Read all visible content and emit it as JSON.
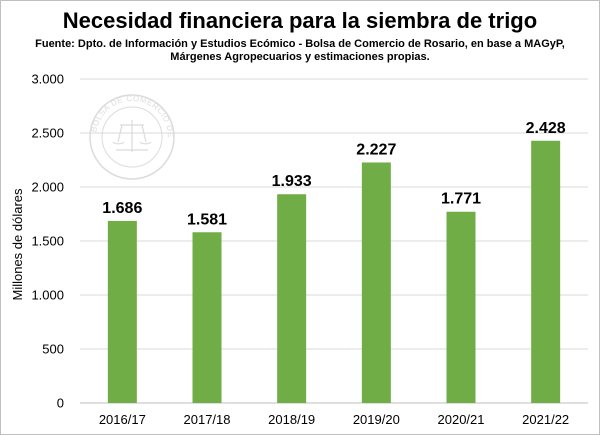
{
  "chart_data": {
    "type": "bar",
    "title": "Necesidad financiera para la siembra de trigo",
    "subtitle_lines": [
      "Fuente: Dpto. de Información y Estudios Ecómico - Bolsa de Comercio de Rosario, en base a MAGyP,",
      "Márgenes Agropecuarios y estimaciones propias."
    ],
    "ylabel": "Millones de dólares",
    "xlabel": "",
    "categories": [
      "2016/17",
      "2017/18",
      "2018/19",
      "2019/20",
      "2020/21",
      "2021/22"
    ],
    "values": [
      1686,
      1581,
      1933,
      2227,
      1771,
      2428
    ],
    "value_labels": [
      "1.686",
      "1.581",
      "1.933",
      "2.227",
      "1.771",
      "2.428"
    ],
    "ylim": [
      0,
      3000
    ],
    "yticks": [
      0,
      500,
      1000,
      1500,
      2000,
      2500,
      3000
    ],
    "ytick_labels": [
      "0",
      "500",
      "1.000",
      "1.500",
      "2.000",
      "2.500",
      "3.000"
    ],
    "grid": true,
    "bar_color": "#70ad47",
    "grid_color": "#d9d9d9",
    "watermark": "BOLSA DE COMERCIO DE ROSARIO"
  }
}
